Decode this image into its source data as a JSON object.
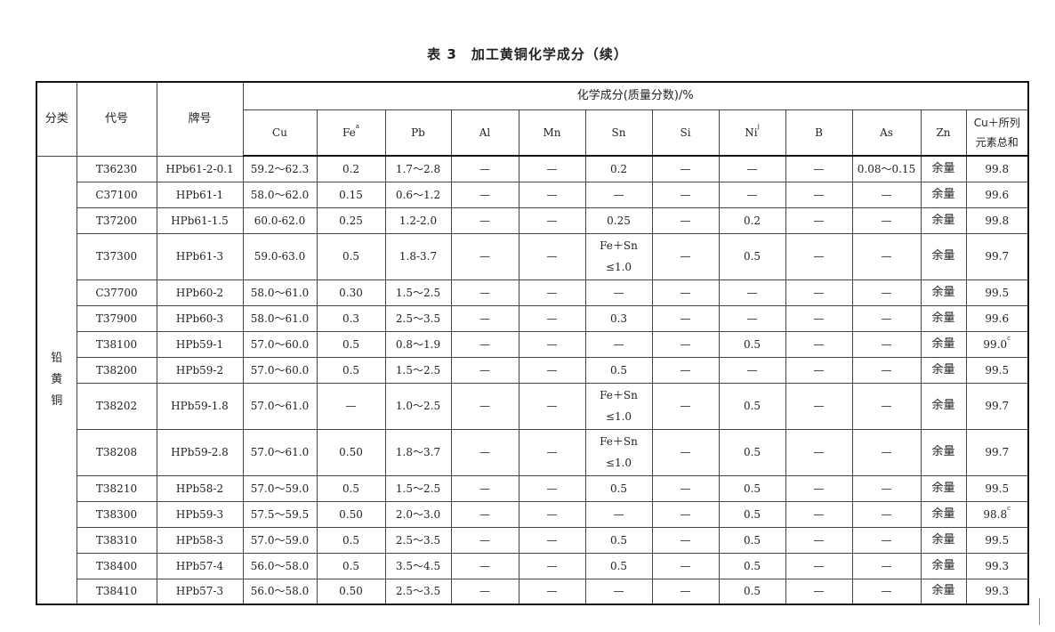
{
  "title": "表 3　加工黄铜化学成分（续）",
  "headers": {
    "category": "分类",
    "code": "代号",
    "grade": "牌号",
    "composition": "化学成分(质量分数)/%",
    "elements": [
      {
        "text": "Cu",
        "sup": ""
      },
      {
        "text": "Fe",
        "sup": "a"
      },
      {
        "text": "Pb",
        "sup": ""
      },
      {
        "text": "Al",
        "sup": ""
      },
      {
        "text": "Mn",
        "sup": ""
      },
      {
        "text": "Sn",
        "sup": ""
      },
      {
        "text": "Si",
        "sup": ""
      },
      {
        "text": "Ni",
        "sup": "j"
      },
      {
        "text": "B",
        "sup": ""
      },
      {
        "text": "As",
        "sup": ""
      },
      {
        "text": "Zn",
        "sup": ""
      },
      {
        "text": "Cu＋所列\n元素总和",
        "sup": ""
      }
    ]
  },
  "category": "铅\n黄\n铜",
  "rows": [
    {
      "cells": [
        "T36230",
        "HPb61-2-0.1",
        "59.2～62.3",
        "0.2",
        "1.7～2.8",
        "—",
        "—",
        "0.2",
        "—",
        "—",
        "—",
        "0.08～0.15",
        "余量",
        "99.8"
      ],
      "sup": ""
    },
    {
      "cells": [
        "C37100",
        "HPb61-1",
        "58.0～62.0",
        "0.15",
        "0.6～1.2",
        "—",
        "—",
        "—",
        "—",
        "—",
        "—",
        "—",
        "余量",
        "99.6"
      ],
      "sup": ""
    },
    {
      "cells": [
        "T37200",
        "HPb61-1.5",
        "60.0-62.0",
        "0.25",
        "1.2-2.0",
        "—",
        "—",
        "0.25",
        "—",
        "0.2",
        "—",
        "—",
        "余量",
        "99.8"
      ],
      "sup": ""
    },
    {
      "cells": [
        "T37300",
        "HPb61-3",
        "59.0-63.0",
        "0.5",
        "1.8-3.7",
        "—",
        "—",
        "Fe＋Sn\n≤1.0",
        "—",
        "0.5",
        "—",
        "—",
        "余量",
        "99.7"
      ],
      "sup": "",
      "tall": true
    },
    {
      "cells": [
        "C37700",
        "HPb60-2",
        "58.0～61.0",
        "0.30",
        "1.5～2.5",
        "—",
        "—",
        "—",
        "—",
        "—",
        "—",
        "—",
        "余量",
        "99.5"
      ],
      "sup": ""
    },
    {
      "cells": [
        "T37900",
        "HPb60-3",
        "58.0～61.0",
        "0.3",
        "2.5～3.5",
        "—",
        "—",
        "0.3",
        "—",
        "—",
        "—",
        "—",
        "余量",
        "99.6"
      ],
      "sup": ""
    },
    {
      "cells": [
        "T38100",
        "HPb59-1",
        "57.0～60.0",
        "0.5",
        "0.8～1.9",
        "—",
        "—",
        "—",
        "—",
        "0.5",
        "—",
        "—",
        "余量",
        "99.0"
      ],
      "sup": "c"
    },
    {
      "cells": [
        "T38200",
        "HPb59-2",
        "57.0～60.0",
        "0.5",
        "1.5～2.5",
        "—",
        "—",
        "0.5",
        "—",
        "—",
        "—",
        "—",
        "余量",
        "99.5"
      ],
      "sup": ""
    },
    {
      "cells": [
        "T38202",
        "HPb59-1.8",
        "57.0～61.0",
        "—",
        "1.0～2.5",
        "—",
        "—",
        "Fe＋Sn\n≤1.0",
        "—",
        "0.5",
        "—",
        "—",
        "余量",
        "99.7"
      ],
      "sup": "",
      "tall": true
    },
    {
      "cells": [
        "T38208",
        "HPb59-2.8",
        "57.0～61.0",
        "0.50",
        "1.8～3.7",
        "—",
        "—",
        "Fe＋Sn\n≤1.0",
        "—",
        "0.5",
        "—",
        "—",
        "余量",
        "99.7"
      ],
      "sup": "",
      "tall": true
    },
    {
      "cells": [
        "T38210",
        "HPb58-2",
        "57.0～59.0",
        "0.5",
        "1.5～2.5",
        "—",
        "—",
        "0.5",
        "—",
        "0.5",
        "—",
        "—",
        "余量",
        "99.5"
      ],
      "sup": ""
    },
    {
      "cells": [
        "T38300",
        "HPb59-3",
        "57.5～59.5",
        "0.50",
        "2.0～3.0",
        "—",
        "—",
        "—",
        "—",
        "0.5",
        "—",
        "—",
        "余量",
        "98.8"
      ],
      "sup": "c"
    },
    {
      "cells": [
        "T38310",
        "HPb58-3",
        "57.0～59.0",
        "0.5",
        "2.5～3.5",
        "—",
        "—",
        "0.5",
        "—",
        "0.5",
        "—",
        "—",
        "余量",
        "99.5"
      ],
      "sup": ""
    },
    {
      "cells": [
        "T38400",
        "HPb57-4",
        "56.0～58.0",
        "0.5",
        "3.5～4.5",
        "—",
        "—",
        "0.5",
        "—",
        "0.5",
        "—",
        "—",
        "余量",
        "99.3"
      ],
      "sup": ""
    },
    {
      "cells": [
        "T38410",
        "HPb57-3",
        "56.0～58.0",
        "0.50",
        "2.5～3.5",
        "—",
        "—",
        "—",
        "—",
        "0.5",
        "—",
        "—",
        "余量",
        "99.3"
      ],
      "sup": ""
    }
  ]
}
